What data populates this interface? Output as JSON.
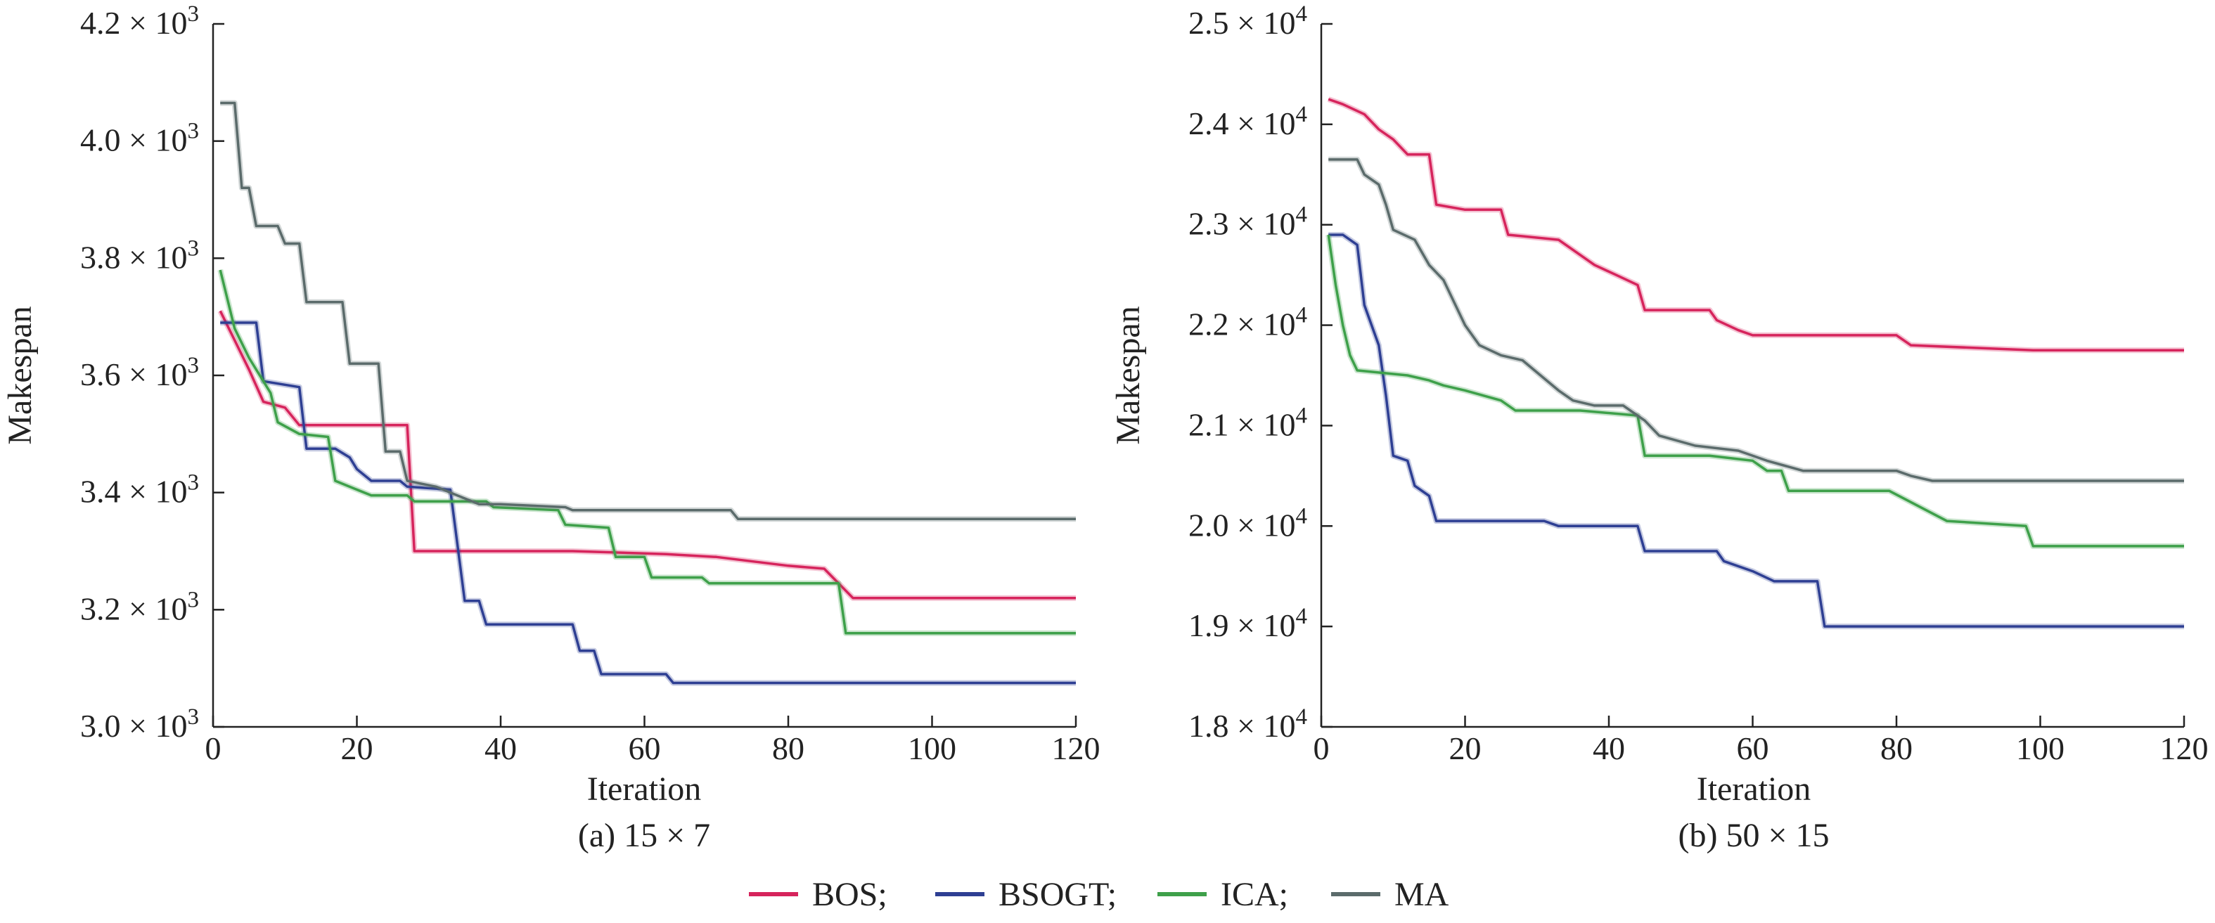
{
  "legend": {
    "items": [
      {
        "label": "BOS;",
        "color": "#d6245c"
      },
      {
        "label": "BSOGT;",
        "color": "#2e3f93"
      },
      {
        "label": "ICA;",
        "color": "#3ea04a"
      },
      {
        "label": "MA",
        "color": "#5b6b6b"
      }
    ]
  },
  "chart_data": [
    {
      "type": "line",
      "caption": "(a) 15 × 7",
      "xlabel": "Iteration",
      "ylabel": "Makespan",
      "xlim": [
        0,
        120
      ],
      "ylim": [
        3000,
        4200
      ],
      "x_ticks": [
        0,
        20,
        40,
        60,
        80,
        100,
        120
      ],
      "x_tick_labels": [
        "0",
        "20",
        "40",
        "60",
        "80",
        "100",
        "120"
      ],
      "y_ticks": [
        3000,
        3200,
        3400,
        3600,
        3800,
        4000,
        4200
      ],
      "y_tick_mantissas": [
        "3.0",
        "3.2",
        "3.4",
        "3.6",
        "3.8",
        "4.0",
        "4.2"
      ],
      "y_tick_exponent": "3",
      "series": [
        {
          "name": "BOS",
          "color": "#d6245c",
          "points": [
            [
              1,
              3710
            ],
            [
              3,
              3660
            ],
            [
              5,
              3610
            ],
            [
              7,
              3555
            ],
            [
              10,
              3545
            ],
            [
              12,
              3515
            ],
            [
              27,
              3515
            ],
            [
              28,
              3300
            ],
            [
              50,
              3300
            ],
            [
              63,
              3295
            ],
            [
              70,
              3290
            ],
            [
              80,
              3275
            ],
            [
              85,
              3270
            ],
            [
              89,
              3220
            ],
            [
              120,
              3220
            ]
          ]
        },
        {
          "name": "BSOGT",
          "color": "#2e3f93",
          "points": [
            [
              1,
              3690
            ],
            [
              6,
              3690
            ],
            [
              7,
              3590
            ],
            [
              12,
              3580
            ],
            [
              13,
              3475
            ],
            [
              17,
              3475
            ],
            [
              19,
              3460
            ],
            [
              20,
              3440
            ],
            [
              22,
              3420
            ],
            [
              26,
              3420
            ],
            [
              27,
              3410
            ],
            [
              33,
              3405
            ],
            [
              35,
              3215
            ],
            [
              37,
              3215
            ],
            [
              38,
              3175
            ],
            [
              50,
              3175
            ],
            [
              51,
              3130
            ],
            [
              53,
              3130
            ],
            [
              54,
              3090
            ],
            [
              63,
              3090
            ],
            [
              64,
              3075
            ],
            [
              120,
              3075
            ]
          ]
        },
        {
          "name": "ICA",
          "color": "#3ea04a",
          "points": [
            [
              1,
              3780
            ],
            [
              3,
              3680
            ],
            [
              5,
              3630
            ],
            [
              8,
              3570
            ],
            [
              9,
              3520
            ],
            [
              12,
              3500
            ],
            [
              16,
              3495
            ],
            [
              17,
              3420
            ],
            [
              22,
              3395
            ],
            [
              27,
              3395
            ],
            [
              28,
              3385
            ],
            [
              38,
              3385
            ],
            [
              39,
              3375
            ],
            [
              48,
              3370
            ],
            [
              49,
              3345
            ],
            [
              55,
              3340
            ],
            [
              56,
              3290
            ],
            [
              60,
              3290
            ],
            [
              61,
              3255
            ],
            [
              68,
              3255
            ],
            [
              69,
              3245
            ],
            [
              87,
              3245
            ],
            [
              88,
              3160
            ],
            [
              120,
              3160
            ]
          ]
        },
        {
          "name": "MA",
          "color": "#5b6b6b",
          "points": [
            [
              1,
              4065
            ],
            [
              3,
              4065
            ],
            [
              4,
              3920
            ],
            [
              5,
              3920
            ],
            [
              6,
              3855
            ],
            [
              9,
              3855
            ],
            [
              10,
              3825
            ],
            [
              12,
              3825
            ],
            [
              13,
              3725
            ],
            [
              18,
              3725
            ],
            [
              19,
              3620
            ],
            [
              23,
              3620
            ],
            [
              24,
              3470
            ],
            [
              26,
              3470
            ],
            [
              27,
              3420
            ],
            [
              31,
              3410
            ],
            [
              33,
              3400
            ],
            [
              37,
              3380
            ],
            [
              40,
              3380
            ],
            [
              49,
              3375
            ],
            [
              50,
              3370
            ],
            [
              72,
              3370
            ],
            [
              73,
              3355
            ],
            [
              120,
              3355
            ]
          ]
        }
      ]
    },
    {
      "type": "line",
      "caption": "(b) 50 × 15",
      "xlabel": "Iteration",
      "ylabel": "Makespan",
      "xlim": [
        0,
        120
      ],
      "ylim": [
        18000,
        25000
      ],
      "x_ticks": [
        0,
        20,
        40,
        60,
        80,
        100,
        120
      ],
      "x_tick_labels": [
        "0",
        "20",
        "40",
        "60",
        "80",
        "100",
        "120"
      ],
      "y_ticks": [
        18000,
        19000,
        20000,
        21000,
        22000,
        23000,
        24000,
        25000
      ],
      "y_tick_mantissas": [
        "1.8",
        "1.9",
        "2.0",
        "2.1",
        "2.2",
        "2.3",
        "2.4",
        "2.5"
      ],
      "y_tick_exponent": "4",
      "series": [
        {
          "name": "BOS",
          "color": "#d6245c",
          "points": [
            [
              1,
              24250
            ],
            [
              3,
              24200
            ],
            [
              6,
              24100
            ],
            [
              8,
              23950
            ],
            [
              10,
              23850
            ],
            [
              12,
              23700
            ],
            [
              15,
              23700
            ],
            [
              16,
              23200
            ],
            [
              20,
              23150
            ],
            [
              25,
              23150
            ],
            [
              26,
              22900
            ],
            [
              33,
              22850
            ],
            [
              36,
              22700
            ],
            [
              38,
              22600
            ],
            [
              41,
              22500
            ],
            [
              44,
              22400
            ],
            [
              45,
              22150
            ],
            [
              54,
              22150
            ],
            [
              55,
              22050
            ],
            [
              58,
              21950
            ],
            [
              60,
              21900
            ],
            [
              67,
              21900
            ],
            [
              80,
              21900
            ],
            [
              82,
              21800
            ],
            [
              99,
              21750
            ],
            [
              120,
              21750
            ]
          ]
        },
        {
          "name": "BSOGT",
          "color": "#2e3f93",
          "points": [
            [
              1,
              22900
            ],
            [
              3,
              22900
            ],
            [
              5,
              22800
            ],
            [
              6,
              22200
            ],
            [
              8,
              21800
            ],
            [
              9,
              21300
            ],
            [
              10,
              20700
            ],
            [
              12,
              20650
            ],
            [
              13,
              20400
            ],
            [
              15,
              20300
            ],
            [
              16,
              20050
            ],
            [
              31,
              20050
            ],
            [
              33,
              20000
            ],
            [
              44,
              20000
            ],
            [
              45,
              19750
            ],
            [
              55,
              19750
            ],
            [
              56,
              19650
            ],
            [
              60,
              19550
            ],
            [
              63,
              19450
            ],
            [
              69,
              19450
            ],
            [
              70,
              19000
            ],
            [
              120,
              19000
            ]
          ]
        },
        {
          "name": "ICA",
          "color": "#3ea04a",
          "points": [
            [
              1,
              22900
            ],
            [
              2,
              22400
            ],
            [
              3,
              22000
            ],
            [
              4,
              21700
            ],
            [
              5,
              21550
            ],
            [
              12,
              21500
            ],
            [
              15,
              21450
            ],
            [
              17,
              21400
            ],
            [
              20,
              21350
            ],
            [
              25,
              21250
            ],
            [
              27,
              21150
            ],
            [
              36,
              21150
            ],
            [
              44,
              21100
            ],
            [
              45,
              20700
            ],
            [
              54,
              20700
            ],
            [
              60,
              20650
            ],
            [
              62,
              20550
            ],
            [
              64,
              20550
            ],
            [
              65,
              20350
            ],
            [
              79,
              20350
            ],
            [
              87,
              20050
            ],
            [
              98,
              20000
            ],
            [
              99,
              19800
            ],
            [
              120,
              19800
            ]
          ]
        },
        {
          "name": "MA",
          "color": "#5b6b6b",
          "points": [
            [
              1,
              23650
            ],
            [
              5,
              23650
            ],
            [
              6,
              23500
            ],
            [
              8,
              23400
            ],
            [
              9,
              23200
            ],
            [
              10,
              22950
            ],
            [
              13,
              22850
            ],
            [
              15,
              22600
            ],
            [
              17,
              22450
            ],
            [
              20,
              22000
            ],
            [
              22,
              21800
            ],
            [
              25,
              21700
            ],
            [
              28,
              21650
            ],
            [
              33,
              21350
            ],
            [
              35,
              21250
            ],
            [
              38,
              21200
            ],
            [
              42,
              21200
            ],
            [
              45,
              21050
            ],
            [
              47,
              20900
            ],
            [
              52,
              20800
            ],
            [
              58,
              20750
            ],
            [
              62,
              20650
            ],
            [
              67,
              20550
            ],
            [
              73,
              20550
            ],
            [
              80,
              20550
            ],
            [
              82,
              20500
            ],
            [
              85,
              20450
            ],
            [
              87,
              20450
            ],
            [
              120,
              20450
            ]
          ]
        }
      ]
    }
  ]
}
